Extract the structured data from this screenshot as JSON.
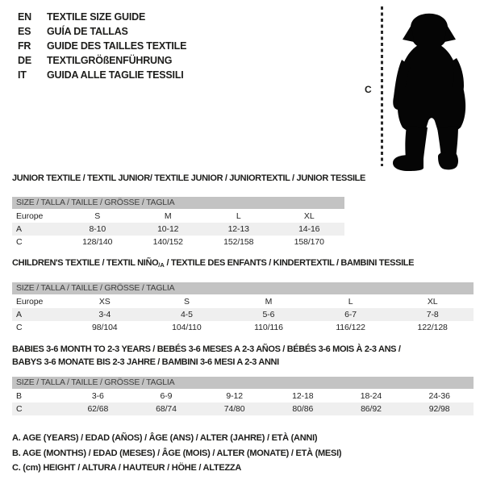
{
  "colors": {
    "background": "#ffffff",
    "header_band": "#c3c3c3",
    "row_stripe": "#efefef",
    "ink": "#1d1d1b",
    "silhouette": "#050505"
  },
  "language_guide": {
    "items": [
      {
        "code": "EN",
        "label": "TEXTILE SIZE GUIDE"
      },
      {
        "code": "ES",
        "label": "GUÍA DE TALLAS"
      },
      {
        "code": "FR",
        "label": "GUIDE DES TAILLES TEXTILE"
      },
      {
        "code": "DE",
        "label": "TEXTILGRÖßENFÜHRUNG"
      },
      {
        "code": "IT",
        "label": "GUIDA ALLE TAGLIE TESSILI"
      }
    ]
  },
  "figure": {
    "height_label": "C",
    "icon": "toddler-silhouette"
  },
  "tables": {
    "junior": {
      "title": "JUNIOR TEXTILE / TEXTIL JUNIOR/ TEXTILE JUNIOR / JUNIORTEXTIL / JUNIOR TESSILE",
      "size_header": "SIZE / TALLA / TAILLE / GRÖSSE / TAGLIA",
      "rows": [
        [
          "Europe",
          "S",
          "M",
          "L",
          "XL"
        ],
        [
          "A",
          "8-10",
          "10-12",
          "12-13",
          "14-16"
        ],
        [
          "C",
          "128/140",
          "140/152",
          "152/158",
          "158/170"
        ]
      ]
    },
    "children": {
      "title_pre": "CHILDREN'S TEXTILE / TEXTIL NIÑO",
      "title_sub": "/A",
      "title_post": " / TEXTILE DES ENFANTS / KINDERTEXTIL / BAMBINI TESSILE",
      "size_header": "SIZE / TALLA / TAILLE / GRÖSSE / TAGLIA",
      "rows": [
        [
          "Europe",
          "XS",
          "S",
          "M",
          "L",
          "XL"
        ],
        [
          "A",
          "3-4",
          "4-5",
          "5-6",
          "6-7",
          "7-8"
        ],
        [
          "C",
          "98/104",
          "104/110",
          "110/116",
          "116/122",
          "122/128"
        ]
      ]
    },
    "babies": {
      "title_line1": "BABIES 3-6 MONTH TO 2-3 YEARS / BEBÉS 3-6 MESES A 2-3 AÑOS / BÉBÉS 3-6 MOIS À 2-3 ANS /",
      "title_line2": "BABYS 3-6 MONATE BIS 2-3 JAHRE / BAMBINI 3-6 MESI A 2-3 ANNI",
      "size_header": "SIZE / TALLA / TAILLE / GRÖSSE / TAGLIA",
      "rows": [
        [
          "B",
          "3-6",
          "6-9",
          "9-12",
          "12-18",
          "18-24",
          "24-36"
        ],
        [
          "C",
          "62/68",
          "68/74",
          "74/80",
          "80/86",
          "86/92",
          "92/98"
        ]
      ]
    }
  },
  "legend": {
    "items": [
      "A. AGE (YEARS) / EDAD (AÑOS) / ÂGE (ANS) / ALTER (JAHRE) / ETÀ (ANNI)",
      "B. AGE (MONTHS) / EDAD (MESES) / ÂGE (MOIS) / ALTER (MONATE) / ETÀ (MESI)",
      "C. (cm) HEIGHT / ALTURA / HAUTEUR / HÖHE / ALTEZZA"
    ]
  }
}
